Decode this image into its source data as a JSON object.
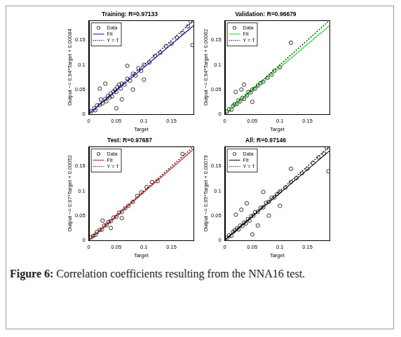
{
  "chart_data": [
    {
      "type": "scatter",
      "title": "Training: R=0.97133",
      "x_label": "Target",
      "y_label": "Output ~= 0.94*Target + 0.00084",
      "xlim": [
        0,
        0.19
      ],
      "ylim": [
        0,
        0.19
      ],
      "xticks": [
        0,
        0.05,
        0.1,
        0.15
      ],
      "yticks": [
        0,
        0.05,
        0.1,
        0.15
      ],
      "grid": false,
      "legend": "upper left",
      "series": [
        {
          "name": "Data",
          "type": "scatter",
          "marker": "circle",
          "color": "#000000",
          "x": [
            0.005,
            0.01,
            0.012,
            0.015,
            0.02,
            0.022,
            0.025,
            0.03,
            0.032,
            0.035,
            0.038,
            0.04,
            0.042,
            0.045,
            0.048,
            0.05,
            0.052,
            0.055,
            0.058,
            0.06,
            0.065,
            0.07,
            0.075,
            0.08,
            0.085,
            0.09,
            0.095,
            0.1,
            0.11,
            0.12,
            0.13,
            0.14,
            0.15,
            0.16,
            0.17,
            0.18,
            0.185,
            0.188,
            0.02,
            0.03,
            0.06,
            0.08,
            0.05,
            0.1,
            0.07
          ],
          "values": [
            0.006,
            0.012,
            0.008,
            0.018,
            0.019,
            0.03,
            0.022,
            0.031,
            0.026,
            0.037,
            0.034,
            0.042,
            0.036,
            0.046,
            0.05,
            0.045,
            0.055,
            0.06,
            0.052,
            0.062,
            0.06,
            0.072,
            0.068,
            0.082,
            0.078,
            0.093,
            0.088,
            0.1,
            0.105,
            0.118,
            0.125,
            0.138,
            0.143,
            0.155,
            0.165,
            0.178,
            0.188,
            0.14,
            0.052,
            0.062,
            0.03,
            0.05,
            0.012,
            0.07,
            0.098
          ]
        },
        {
          "name": "Fit",
          "type": "line",
          "line_style": "solid",
          "color": "#0000ff",
          "x": [
            0,
            0.19
          ],
          "values": [
            0.00084,
            0.17944
          ]
        },
        {
          "name": "Y = T",
          "type": "line",
          "line_style": "dotted",
          "color": "#000000",
          "x": [
            0,
            0.19
          ],
          "values": [
            0,
            0.19
          ]
        }
      ]
    },
    {
      "type": "scatter",
      "title": "Validation: R=0.96679",
      "x_label": "Target",
      "y_label": "Output ~= 0.94*Target + 0.00062",
      "xlim": [
        0,
        0.19
      ],
      "ylim": [
        0,
        0.19
      ],
      "xticks": [
        0,
        0.05,
        0.1,
        0.15
      ],
      "yticks": [
        0,
        0.05,
        0.1,
        0.15
      ],
      "grid": false,
      "legend": "upper left",
      "series": [
        {
          "name": "Data",
          "type": "scatter",
          "marker": "circle",
          "color": "#000000",
          "x": [
            0.004,
            0.008,
            0.012,
            0.015,
            0.018,
            0.022,
            0.025,
            0.028,
            0.032,
            0.035,
            0.04,
            0.043,
            0.047,
            0.05,
            0.055,
            0.06,
            0.065,
            0.07,
            0.078,
            0.085,
            0.09,
            0.1,
            0.12,
            0.02,
            0.035,
            0.05,
            0.03
          ],
          "values": [
            0.005,
            0.01,
            0.009,
            0.017,
            0.02,
            0.021,
            0.028,
            0.026,
            0.033,
            0.031,
            0.038,
            0.045,
            0.044,
            0.05,
            0.052,
            0.058,
            0.063,
            0.066,
            0.074,
            0.08,
            0.088,
            0.095,
            0.145,
            0.045,
            0.06,
            0.025,
            0.05
          ]
        },
        {
          "name": "Fit",
          "type": "line",
          "line_style": "solid",
          "color": "#00ff00",
          "x": [
            0,
            0.19
          ],
          "values": [
            0.00062,
            0.17922
          ]
        },
        {
          "name": "Y = T",
          "type": "line",
          "line_style": "dotted",
          "color": "#000000",
          "x": [
            0,
            0.19
          ],
          "values": [
            0,
            0.19
          ]
        }
      ]
    },
    {
      "type": "scatter",
      "title": "Test: R=0.97687",
      "x_label": "Target",
      "y_label": "Output ~= 0.97*Target + 0.00052",
      "xlim": [
        0,
        0.19
      ],
      "ylim": [
        0,
        0.19
      ],
      "xticks": [
        0,
        0.05,
        0.1,
        0.15
      ],
      "yticks": [
        0,
        0.05,
        0.1,
        0.15
      ],
      "grid": false,
      "legend": "upper left",
      "series": [
        {
          "name": "Data",
          "type": "scatter",
          "marker": "circle",
          "color": "#000000",
          "x": [
            0.004,
            0.008,
            0.012,
            0.015,
            0.02,
            0.024,
            0.028,
            0.032,
            0.036,
            0.04,
            0.045,
            0.05,
            0.055,
            0.06,
            0.066,
            0.072,
            0.08,
            0.088,
            0.095,
            0.105,
            0.115,
            0.125,
            0.17,
            0.025,
            0.04,
            0.06
          ],
          "values": [
            0.006,
            0.009,
            0.011,
            0.017,
            0.021,
            0.022,
            0.03,
            0.031,
            0.037,
            0.039,
            0.046,
            0.048,
            0.056,
            0.058,
            0.065,
            0.07,
            0.078,
            0.09,
            0.097,
            0.108,
            0.118,
            0.12,
            0.175,
            0.04,
            0.025,
            0.045
          ]
        },
        {
          "name": "Fit",
          "type": "line",
          "line_style": "solid",
          "color": "#ff0000",
          "x": [
            0,
            0.19
          ],
          "values": [
            0.00052,
            0.18482
          ]
        },
        {
          "name": "Y = T",
          "type": "line",
          "line_style": "dotted",
          "color": "#000000",
          "x": [
            0,
            0.19
          ],
          "values": [
            0,
            0.19
          ]
        }
      ]
    },
    {
      "type": "scatter",
      "title": "All: R=0.97146",
      "x_label": "Target",
      "y_label": "Output ~= 0.95*Target + 0.00079",
      "xlim": [
        0,
        0.19
      ],
      "ylim": [
        0,
        0.19
      ],
      "xticks": [
        0,
        0.05,
        0.1,
        0.15
      ],
      "yticks": [
        0,
        0.05,
        0.1,
        0.15
      ],
      "grid": false,
      "legend": "upper left",
      "series": [
        {
          "name": "Data",
          "type": "scatter",
          "marker": "circle",
          "color": "#000000",
          "x": [
            0.004,
            0.008,
            0.012,
            0.015,
            0.018,
            0.022,
            0.025,
            0.028,
            0.032,
            0.035,
            0.038,
            0.042,
            0.045,
            0.048,
            0.052,
            0.055,
            0.06,
            0.065,
            0.07,
            0.075,
            0.08,
            0.085,
            0.09,
            0.095,
            0.1,
            0.11,
            0.12,
            0.13,
            0.14,
            0.15,
            0.16,
            0.17,
            0.18,
            0.185,
            0.188,
            0.02,
            0.03,
            0.06,
            0.08,
            0.05,
            0.1,
            0.07,
            0.12,
            0.04
          ],
          "values": [
            0.005,
            0.01,
            0.009,
            0.017,
            0.02,
            0.024,
            0.022,
            0.03,
            0.029,
            0.036,
            0.034,
            0.043,
            0.04,
            0.049,
            0.05,
            0.057,
            0.058,
            0.066,
            0.067,
            0.076,
            0.078,
            0.086,
            0.087,
            0.094,
            0.099,
            0.107,
            0.118,
            0.126,
            0.136,
            0.145,
            0.157,
            0.168,
            0.176,
            0.188,
            0.14,
            0.052,
            0.062,
            0.03,
            0.05,
            0.012,
            0.07,
            0.098,
            0.145,
            0.075
          ]
        },
        {
          "name": "Fit",
          "type": "line",
          "line_style": "solid",
          "color": "#000000",
          "x": [
            0,
            0.19
          ],
          "values": [
            0.00079,
            0.18129
          ]
        },
        {
          "name": "Y = T",
          "type": "line",
          "line_style": "dotted",
          "color": "#000000",
          "x": [
            0,
            0.19
          ],
          "values": [
            0,
            0.19
          ]
        }
      ]
    }
  ],
  "caption": {
    "label": "Figure 6:",
    "text": "Correlation coefficients resulting from the NNA16 test."
  }
}
